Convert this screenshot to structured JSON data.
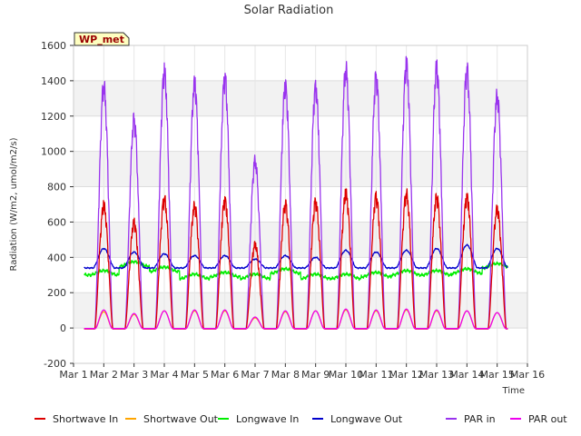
{
  "chart_data": {
    "type": "line",
    "title": "Solar Radiation",
    "xlabel": "Time",
    "ylabel": "Radiation (W/m2, umol/m2/s)",
    "annotation": "WP_met",
    "ylim": [
      -200,
      1600
    ],
    "yticks": [
      -200,
      0,
      200,
      400,
      600,
      800,
      1000,
      1200,
      1400,
      1600
    ],
    "xlim": [
      1,
      16
    ],
    "xticks": [
      1,
      2,
      3,
      4,
      5,
      6,
      7,
      8,
      9,
      10,
      11,
      12,
      13,
      14,
      15,
      16
    ],
    "xtick_labels": [
      "Mar 1",
      "Mar 2",
      "Mar 3",
      "Mar 4",
      "Mar 5",
      "Mar 6",
      "Mar 7",
      "Mar 8",
      "Mar 9",
      "Mar 10",
      "Mar 11",
      "Mar 12",
      "Mar 13",
      "Mar 14",
      "Mar 15",
      "Mar 16"
    ],
    "grid": true,
    "legend_position": "bottom",
    "data_range_days": [
      1.35,
      15.35
    ],
    "daily_peaks": {
      "day": [
        2,
        3,
        4,
        5,
        6,
        7,
        8,
        9,
        10,
        11,
        12,
        13,
        14,
        15
      ],
      "shortwave_in": [
        730,
        630,
        770,
        730,
        760,
        500,
        740,
        750,
        800,
        780,
        800,
        780,
        780,
        710
      ],
      "shortwave_out": [
        95,
        80,
        100,
        100,
        100,
        60,
        95,
        100,
        105,
        100,
        105,
        100,
        100,
        90
      ],
      "par_in": [
        1430,
        1230,
        1510,
        1440,
        1480,
        990,
        1430,
        1420,
        1530,
        1480,
        1550,
        1530,
        1520,
        1370
      ],
      "par_out": [
        105,
        85,
        100,
        105,
        105,
        65,
        100,
        100,
        110,
        105,
        110,
        105,
        100,
        90
      ],
      "longwave_in": [
        320,
        370,
        340,
        300,
        310,
        300,
        330,
        300,
        300,
        310,
        320,
        320,
        330,
        360
      ],
      "longwave_out": [
        450,
        430,
        420,
        410,
        410,
        390,
        410,
        400,
        440,
        430,
        440,
        450,
        470,
        450
      ]
    },
    "series": [
      {
        "name": "Shortwave In",
        "color": "#dd0000"
      },
      {
        "name": "Shortwave Out",
        "color": "#ffa500"
      },
      {
        "name": "Longwave In",
        "color": "#00ee00"
      },
      {
        "name": "Longwave Out",
        "color": "#0000cc"
      },
      {
        "name": "PAR in",
        "color": "#9933ee"
      },
      {
        "name": "PAR out",
        "color": "#ee00ee"
      }
    ]
  }
}
